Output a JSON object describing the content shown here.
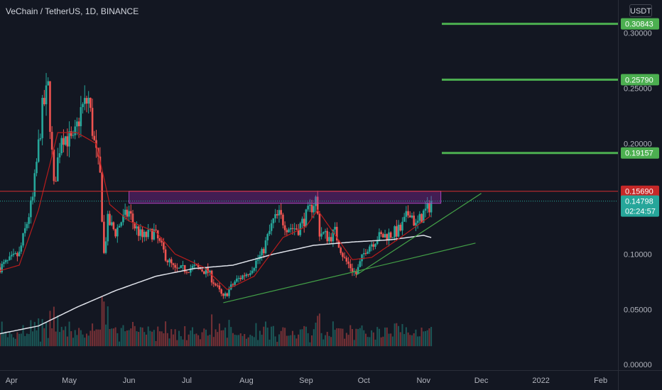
{
  "header": {
    "title": "VeChain / TetherUS, 1D, BINANCE",
    "currency": "USDT"
  },
  "chart_data": {
    "type": "candlestick",
    "title": "VeChain / TetherUS, 1D, BINANCE",
    "y_axis": {
      "ticks": [
        "0.30000",
        "0.25000",
        "0.20000",
        "0.15000",
        "0.10000",
        "0.05000",
        "0.00000"
      ],
      "ylim": [
        -0.005,
        0.33
      ]
    },
    "x_axis": {
      "ticks": [
        "Apr",
        "May",
        "Jun",
        "Jul",
        "Aug",
        "Sep",
        "Oct",
        "Nov",
        "Dec",
        "2022",
        "Feb"
      ],
      "range": [
        "2021-03-26",
        "2022-02-10"
      ]
    },
    "price_labels": [
      {
        "value": 0.30843,
        "text": "0.30843",
        "color": "#4caf50"
      },
      {
        "value": 0.2579,
        "text": "0.25790",
        "color": "#4caf50"
      },
      {
        "value": 0.19157,
        "text": "0.19157",
        "color": "#4caf50"
      },
      {
        "value": 0.1569,
        "text": "0.15690",
        "color": "#c62828"
      },
      {
        "value": 0.14798,
        "text": "0.14798",
        "color": "#26a69a"
      }
    ],
    "countdown": "02:24:57",
    "target_lines": [
      0.30843,
      0.2579,
      0.19157
    ],
    "resistance_line": 0.1569,
    "last_price": 0.14798,
    "zone": {
      "from": "2021-06-01",
      "to": "2021-11-10",
      "low": 0.146,
      "high": 0.157
    },
    "trendlines": [
      {
        "from": [
          "2021-07-20",
          0.056
        ],
        "to": [
          "2021-11-28",
          0.11
        ]
      },
      {
        "from": [
          "2021-09-27",
          0.081
        ],
        "to": [
          "2021-12-01",
          0.155
        ]
      }
    ],
    "price_path": [
      [
        "2021-03-26",
        0.088
      ],
      [
        "2021-04-05",
        0.1
      ],
      [
        "2021-04-12",
        0.15
      ],
      [
        "2021-04-17",
        0.23
      ],
      [
        "2021-04-20",
        0.25
      ],
      [
        "2021-04-23",
        0.16
      ],
      [
        "2021-04-27",
        0.21
      ],
      [
        "2021-05-03",
        0.2
      ],
      [
        "2021-05-07",
        0.23
      ],
      [
        "2021-05-11",
        0.24
      ],
      [
        "2021-05-14",
        0.2
      ],
      [
        "2021-05-17",
        0.17
      ],
      [
        "2021-05-19",
        0.1
      ],
      [
        "2021-05-21",
        0.13
      ],
      [
        "2021-05-25",
        0.12
      ],
      [
        "2021-05-28",
        0.13
      ],
      [
        "2021-06-01",
        0.138
      ],
      [
        "2021-06-04",
        0.125
      ],
      [
        "2021-06-08",
        0.115
      ],
      [
        "2021-06-14",
        0.12
      ],
      [
        "2021-06-21",
        0.095
      ],
      [
        "2021-06-25",
        0.085
      ],
      [
        "2021-07-05",
        0.088
      ],
      [
        "2021-07-12",
        0.084
      ],
      [
        "2021-07-20",
        0.06
      ],
      [
        "2021-07-26",
        0.075
      ],
      [
        "2021-08-02",
        0.084
      ],
      [
        "2021-08-09",
        0.1
      ],
      [
        "2021-08-15",
        0.13
      ],
      [
        "2021-08-18",
        0.135
      ],
      [
        "2021-08-22",
        0.125
      ],
      [
        "2021-08-28",
        0.123
      ],
      [
        "2021-09-03",
        0.14
      ],
      [
        "2021-09-06",
        0.15
      ],
      [
        "2021-09-08",
        0.12
      ],
      [
        "2021-09-13",
        0.115
      ],
      [
        "2021-09-16",
        0.12
      ],
      [
        "2021-09-21",
        0.095
      ],
      [
        "2021-09-27",
        0.082
      ],
      [
        "2021-10-02",
        0.105
      ],
      [
        "2021-10-08",
        0.115
      ],
      [
        "2021-10-15",
        0.118
      ],
      [
        "2021-10-20",
        0.122
      ],
      [
        "2021-10-25",
        0.14
      ],
      [
        "2021-10-28",
        0.125
      ],
      [
        "2021-11-01",
        0.137
      ],
      [
        "2021-11-03",
        0.14
      ],
      [
        "2021-11-05",
        0.148
      ]
    ],
    "ma_fast_path": [
      [
        "2021-03-26",
        0.085
      ],
      [
        "2021-04-05",
        0.09
      ],
      [
        "2021-04-15",
        0.14
      ],
      [
        "2021-04-25",
        0.21
      ],
      [
        "2021-05-05",
        0.21
      ],
      [
        "2021-05-15",
        0.2
      ],
      [
        "2021-05-22",
        0.145
      ],
      [
        "2021-06-01",
        0.13
      ],
      [
        "2021-06-15",
        0.12
      ],
      [
        "2021-06-25",
        0.1
      ],
      [
        "2021-07-10",
        0.088
      ],
      [
        "2021-07-22",
        0.068
      ],
      [
        "2021-08-05",
        0.08
      ],
      [
        "2021-08-20",
        0.115
      ],
      [
        "2021-09-01",
        0.125
      ],
      [
        "2021-09-07",
        0.14
      ],
      [
        "2021-09-15",
        0.12
      ],
      [
        "2021-09-25",
        0.095
      ],
      [
        "2021-10-05",
        0.097
      ],
      [
        "2021-10-20",
        0.115
      ],
      [
        "2021-11-05",
        0.135
      ]
    ],
    "ma_slow_path": [
      [
        "2021-03-26",
        0.028
      ],
      [
        "2021-04-15",
        0.035
      ],
      [
        "2021-05-05",
        0.052
      ],
      [
        "2021-05-25",
        0.067
      ],
      [
        "2021-06-15",
        0.08
      ],
      [
        "2021-07-05",
        0.087
      ],
      [
        "2021-07-25",
        0.09
      ],
      [
        "2021-08-15",
        0.1
      ],
      [
        "2021-09-05",
        0.108
      ],
      [
        "2021-09-25",
        0.111
      ],
      [
        "2021-10-15",
        0.113
      ],
      [
        "2021-11-01",
        0.117
      ],
      [
        "2021-11-05",
        0.115
      ]
    ],
    "colors": {
      "up": "#26a69a",
      "down": "#ef5350",
      "ma_fast": "#b71c1c",
      "ma_slow": "#e0e3eb",
      "target": "#4caf50",
      "resistance": "#d32f2f",
      "zone": "#9c27b0",
      "trend": "#43a047"
    }
  }
}
